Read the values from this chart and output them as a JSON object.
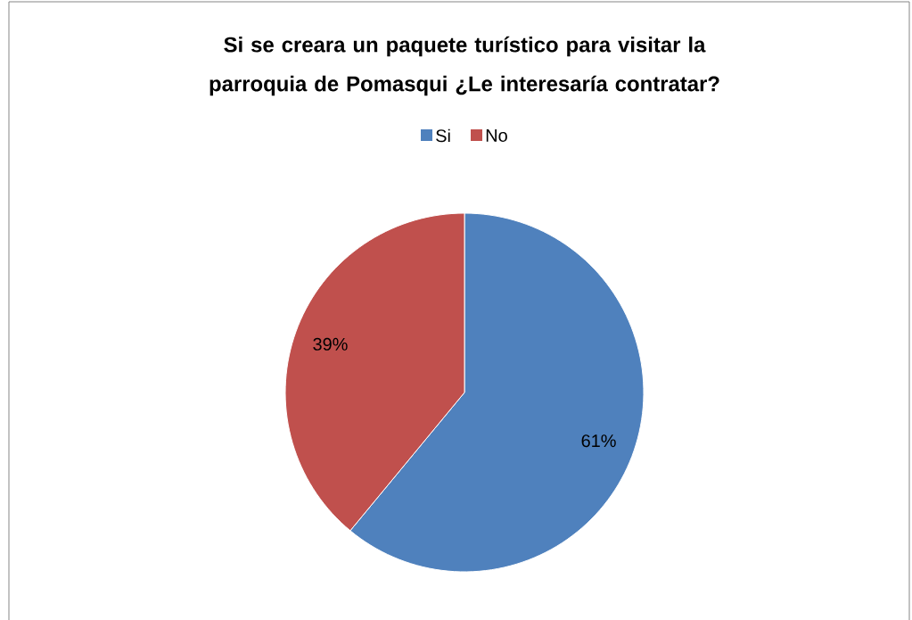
{
  "chart_data": {
    "type": "pie",
    "title": "Si se creara un paquete turístico para visitar la parroquia de Pomasqui ¿Le interesaría contratar?",
    "categories": [
      "Si",
      "No"
    ],
    "values": [
      61,
      39
    ],
    "colors": [
      "#4f81bd",
      "#c0504d"
    ],
    "value_labels": [
      "61%",
      "39%"
    ],
    "legend": "top"
  }
}
